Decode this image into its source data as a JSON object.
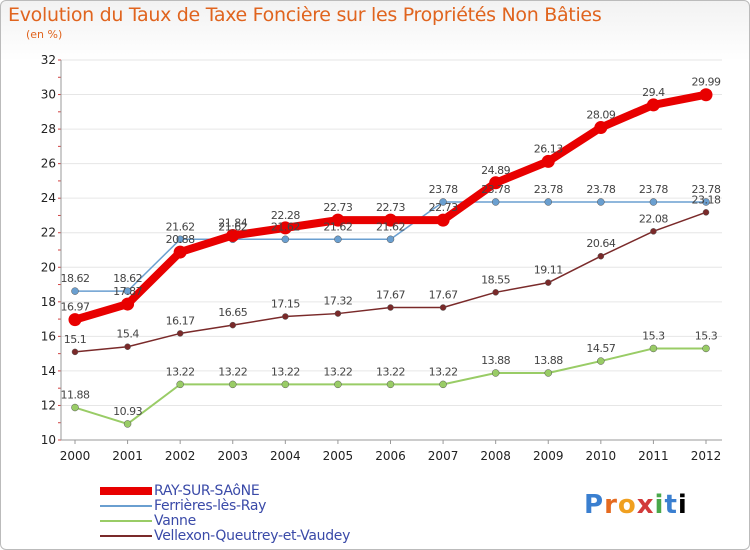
{
  "header": {
    "title": "Evolution du Taux de Taxe Foncière sur les Propriétés Non Bâties",
    "unit": "(en %)"
  },
  "logo": {
    "text": "Proxiti"
  },
  "chart_data": {
    "type": "line",
    "title": "Evolution du Taux de Taxe Foncière sur les Propriétés Non Bâties",
    "ylabel": "(en %)",
    "xlabel": "",
    "x": [
      "2000",
      "2001",
      "2002",
      "2003",
      "2004",
      "2005",
      "2006",
      "2007",
      "2008",
      "2009",
      "2010",
      "2011",
      "2012"
    ],
    "ylim": [
      10,
      32
    ],
    "yticks": [
      10,
      12,
      14,
      16,
      18,
      20,
      22,
      24,
      26,
      28,
      30,
      32
    ],
    "grid": "horizontal",
    "legend": "bottom-left",
    "series": [
      {
        "name": "RAY-SUR-SAôNE",
        "color": "#e80000",
        "values": [
          16.97,
          17.87,
          20.88,
          21.84,
          22.28,
          22.73,
          22.73,
          22.73,
          24.89,
          26.13,
          28.09,
          29.4,
          29.99
        ],
        "labels": [
          "16.97",
          "17.87",
          "20.88",
          "21.84",
          "22.28",
          "22.73",
          "22.73",
          "22.73",
          "24.89",
          "26.13",
          "28.09",
          "29.4",
          "29.99"
        ]
      },
      {
        "name": "Ferrières-lès-Ray",
        "color": "#6a9fd0",
        "values": [
          18.62,
          18.62,
          21.62,
          21.62,
          21.62,
          21.62,
          21.62,
          23.78,
          23.78,
          23.78,
          23.78,
          23.78,
          23.78
        ],
        "labels": [
          "18.62",
          "18.62",
          "21.62",
          "21.62",
          "21.62",
          "21.62",
          "21.62",
          "23.78",
          "23.78",
          "23.78",
          "23.78",
          "23.78",
          "23.78"
        ]
      },
      {
        "name": "Vanne",
        "color": "#99cc66",
        "values": [
          11.88,
          10.93,
          13.22,
          13.22,
          13.22,
          13.22,
          13.22,
          13.22,
          13.88,
          13.88,
          14.57,
          15.3,
          15.3
        ],
        "labels": [
          "11.88",
          "10.93",
          "13.22",
          "13.22",
          "13.22",
          "13.22",
          "13.22",
          "13.22",
          "13.88",
          "13.88",
          "14.57",
          "15.3",
          "15.3"
        ]
      },
      {
        "name": "Vellexon-Queutrey-et-Vaudey",
        "color": "#7a2a2a",
        "values": [
          15.1,
          15.4,
          16.17,
          16.65,
          17.15,
          17.32,
          17.67,
          17.67,
          18.55,
          19.11,
          20.64,
          22.08,
          23.18
        ],
        "labels": [
          "15.1",
          "15.4",
          "16.17",
          "16.65",
          "17.15",
          "17.32",
          "17.67",
          "17.67",
          "18.55",
          "19.11",
          "20.64",
          "22.08",
          "23.18"
        ]
      }
    ]
  }
}
